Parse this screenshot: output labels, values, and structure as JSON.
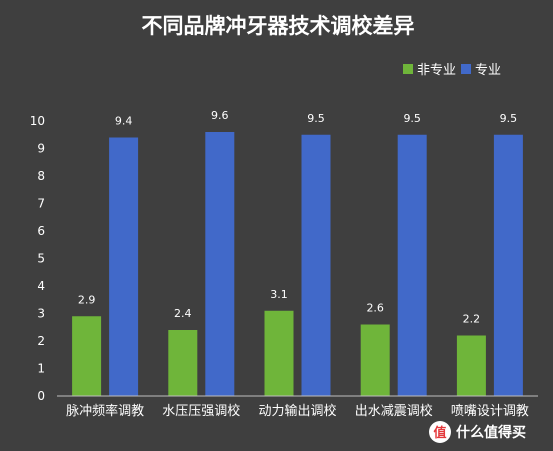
{
  "chart_data": {
    "type": "bar",
    "title": "不同品牌冲牙器技术调校差异",
    "categories": [
      "脉冲频率调教",
      "水压压强调校",
      "动力输出调校",
      "出水减震调校",
      "喷嘴设计调教"
    ],
    "series": [
      {
        "name": "非专业",
        "color": "#6fb53a",
        "values": [
          2.9,
          2.4,
          3.1,
          2.6,
          2.2
        ]
      },
      {
        "name": "专业",
        "color": "#4169c9",
        "values": [
          9.4,
          9.6,
          9.5,
          9.5,
          9.5
        ]
      }
    ],
    "yticks": [
      0,
      1,
      2,
      3,
      4,
      5,
      6,
      7,
      8,
      9,
      10
    ],
    "ylim": [
      0,
      10
    ],
    "xlabel": "",
    "ylabel": "",
    "grid": false,
    "legend_position": "top-right"
  },
  "watermark": {
    "text": "什么值得买"
  },
  "colors": {
    "background": "#3f3f3f",
    "axis": "#bfbfbf"
  }
}
